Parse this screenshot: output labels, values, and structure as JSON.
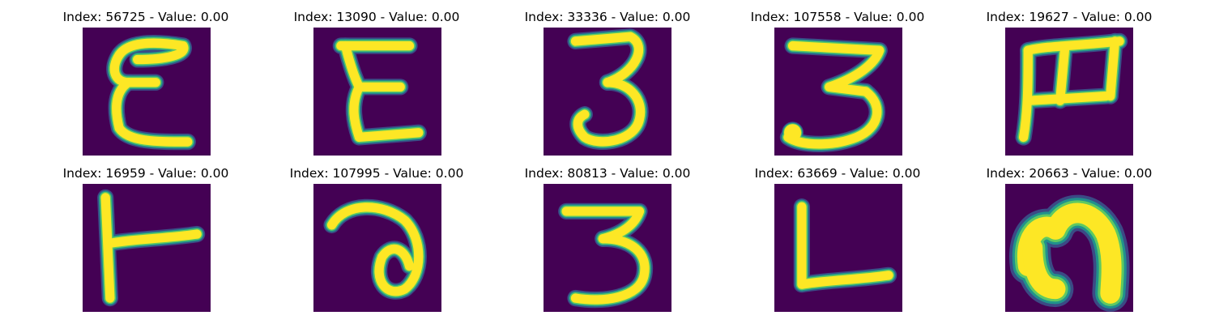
{
  "colors": {
    "background": "#440154",
    "stroke": "#fde725",
    "edge": "#21918c",
    "edge_outer": "#3b528b",
    "edge_inner": "#5ec962"
  },
  "panels": [
    {
      "title": "Index: 56725 - Value: 0.00",
      "glyph": "epsilon-like-letter"
    },
    {
      "title": "Index: 13090 - Value: 0.00",
      "glyph": "epsilon-like-letter"
    },
    {
      "title": "Index: 33336 - Value: 0.00",
      "glyph": "digit-three"
    },
    {
      "title": "Index: 107558 - Value: 0.00",
      "glyph": "digit-three"
    },
    {
      "title": "Index: 19627 - Value: 0.00",
      "glyph": "rotated-m-letter"
    },
    {
      "title": "Index: 16959 - Value: 0.00",
      "glyph": "rotated-t-letter"
    },
    {
      "title": "Index: 107995 - Value: 0.00",
      "glyph": "hooked-a-letter"
    },
    {
      "title": "Index: 80813 - Value: 0.00",
      "glyph": "digit-three"
    },
    {
      "title": "Index: 63669 - Value: 0.00",
      "glyph": "letter-l"
    },
    {
      "title": "Index: 20663 - Value: 0.00",
      "glyph": "arch-n-letter"
    }
  ]
}
